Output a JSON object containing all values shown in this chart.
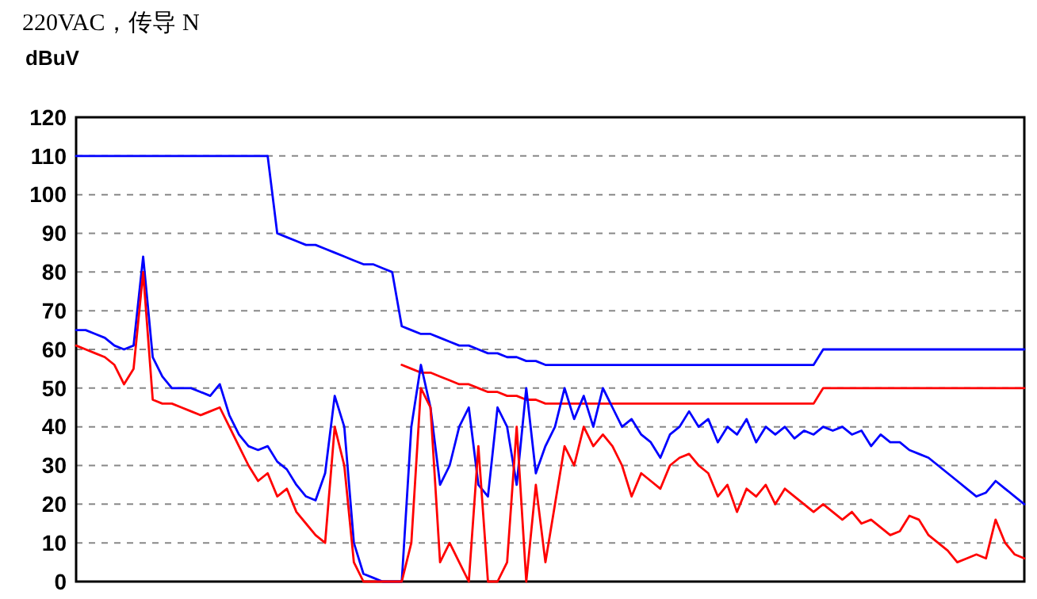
{
  "chart_data": {
    "type": "line",
    "title": "220VAC，传导 N",
    "ylabel": "dBuV",
    "categories": [
      null,
      null,
      null,
      null,
      null,
      null,
      null,
      null,
      null,
      null,
      null,
      null,
      null,
      null,
      null,
      null,
      null,
      null,
      null,
      null,
      null,
      null,
      null,
      null,
      null,
      null,
      null,
      null,
      null,
      null,
      null,
      null,
      null,
      null,
      null,
      null,
      null,
      null,
      null,
      null,
      null,
      null,
      null,
      null,
      null,
      null,
      null,
      null,
      null,
      null,
      null,
      null,
      null,
      null,
      null,
      null,
      null,
      null,
      null,
      null,
      null,
      null,
      null,
      null,
      null,
      null,
      null,
      null,
      null,
      null,
      null,
      null,
      null,
      null,
      null,
      null,
      null,
      null,
      null,
      null,
      null,
      null,
      null,
      null,
      null,
      null,
      null,
      null,
      null,
      null,
      null,
      null,
      null,
      null,
      null,
      null,
      null,
      null,
      null,
      null
    ],
    "ylim": [
      0,
      120
    ],
    "yticks": [
      0,
      10,
      20,
      30,
      40,
      50,
      60,
      70,
      80,
      90,
      100,
      110,
      120
    ],
    "grid": "y",
    "tick_labels": "y",
    "line_style": "solid",
    "marker": "none",
    "series": [
      {
        "color": "#0000ff",
        "values": [
          110,
          110,
          110,
          110,
          110,
          110,
          110,
          110,
          110,
          110,
          110,
          110,
          110,
          110,
          110,
          110,
          110,
          110,
          110,
          110,
          110,
          90,
          89,
          88,
          87,
          87,
          86,
          85,
          84,
          83,
          82,
          82,
          81,
          80,
          66,
          65,
          64,
          64,
          63,
          62,
          61,
          61,
          60,
          59,
          59,
          58,
          58,
          57,
          57,
          56,
          56,
          56,
          56,
          56,
          56,
          56,
          56,
          56,
          56,
          56,
          56,
          56,
          56,
          56,
          56,
          56,
          56,
          56,
          56,
          56,
          56,
          56,
          56,
          56,
          56,
          56,
          56,
          56,
          60,
          60,
          60,
          60,
          60,
          60,
          60,
          60,
          60,
          60,
          60,
          60,
          60,
          60,
          60,
          60,
          60,
          60,
          60,
          60,
          60,
          60
        ]
      },
      {
        "color": "#ff0000",
        "values": [
          null,
          null,
          null,
          null,
          null,
          null,
          null,
          null,
          null,
          null,
          null,
          null,
          null,
          null,
          null,
          null,
          null,
          null,
          null,
          null,
          null,
          null,
          null,
          null,
          null,
          null,
          null,
          null,
          null,
          null,
          null,
          null,
          null,
          null,
          56,
          55,
          54,
          54,
          53,
          52,
          51,
          51,
          50,
          49,
          49,
          48,
          48,
          47,
          47,
          46,
          46,
          46,
          46,
          46,
          46,
          46,
          46,
          46,
          46,
          46,
          46,
          46,
          46,
          46,
          46,
          46,
          46,
          46,
          46,
          46,
          46,
          46,
          46,
          46,
          46,
          46,
          46,
          46,
          50,
          50,
          50,
          50,
          50,
          50,
          50,
          50,
          50,
          50,
          50,
          50,
          50,
          50,
          50,
          50,
          50,
          50,
          50,
          50,
          50,
          50
        ]
      },
      {
        "color": "#0000ff",
        "values": [
          65,
          65,
          64,
          63,
          61,
          60,
          61,
          84,
          58,
          53,
          50,
          50,
          50,
          49,
          48,
          51,
          43,
          38,
          35,
          34,
          35,
          31,
          29,
          25,
          22,
          21,
          28,
          48,
          40,
          10,
          2,
          1,
          0,
          0,
          0,
          40,
          56,
          45,
          25,
          30,
          40,
          45,
          25,
          22,
          45,
          40,
          25,
          50,
          28,
          35,
          40,
          50,
          42,
          48,
          40,
          50,
          45,
          40,
          42,
          38,
          36,
          32,
          38,
          40,
          44,
          40,
          42,
          36,
          40,
          38,
          42,
          36,
          40,
          38,
          40,
          37,
          39,
          38,
          40,
          39,
          40,
          38,
          39,
          35,
          38,
          36,
          36,
          34,
          33,
          32,
          30,
          28,
          26,
          24,
          22,
          23,
          26,
          24,
          22,
          20
        ]
      },
      {
        "color": "#ff0000",
        "values": [
          61,
          60,
          59,
          58,
          56,
          51,
          55,
          80,
          47,
          46,
          46,
          45,
          44,
          43,
          44,
          45,
          40,
          35,
          30,
          26,
          28,
          22,
          24,
          18,
          15,
          12,
          10,
          40,
          30,
          5,
          0,
          0,
          0,
          0,
          0,
          10,
          50,
          45,
          5,
          10,
          5,
          0,
          35,
          0,
          0,
          5,
          40,
          0,
          25,
          5,
          20,
          35,
          30,
          40,
          35,
          38,
          35,
          30,
          22,
          28,
          26,
          24,
          30,
          32,
          33,
          30,
          28,
          22,
          25,
          18,
          24,
          22,
          25,
          20,
          24,
          22,
          20,
          18,
          20,
          18,
          16,
          18,
          15,
          16,
          14,
          12,
          13,
          17,
          16,
          12,
          10,
          8,
          5,
          6,
          7,
          6,
          16,
          10,
          7,
          6
        ]
      }
    ]
  }
}
